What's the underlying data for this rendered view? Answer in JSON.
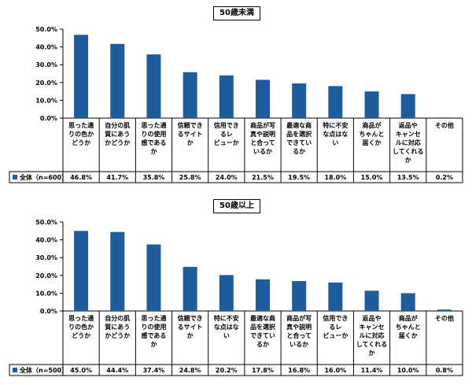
{
  "chart_data": [
    {
      "type": "bar",
      "title": "50歳未満",
      "y_ticks": [
        "0.0%",
        "10.0%",
        "20.0%",
        "30.0%",
        "40.0%",
        "50.0%"
      ],
      "ylim": [
        0,
        50
      ],
      "grid": false,
      "color": "#1f5c9e",
      "categories": [
        [
          "思った通",
          "りの色か",
          "どうか"
        ],
        [
          "自分の肌",
          "質にあう",
          "かどうか"
        ],
        [
          "思った通",
          "りの使用",
          "感である",
          "か"
        ],
        [
          "信頼でき",
          "るサイト",
          "か"
        ],
        [
          "信用でき",
          "るレ",
          "ビューか"
        ],
        [
          "商品が写",
          "真や説明",
          "と合って",
          "いるか"
        ],
        [
          "最適な商",
          "品を選択",
          "できてい",
          "るか"
        ],
        [
          "特に不安",
          "な点はな",
          "い"
        ],
        [
          "商品が",
          "ちゃんと",
          "届くか"
        ],
        [
          "返品や",
          "キャンセ",
          "ルに対応",
          "してくれる",
          "か"
        ],
        [
          "その他"
        ]
      ],
      "series": [
        {
          "name": "全体（n=600）",
          "values": [
            46.8,
            41.7,
            35.8,
            25.8,
            24.0,
            21.5,
            19.5,
            18.0,
            15.0,
            13.5,
            0.2
          ],
          "labels": [
            "46.8%",
            "41.7%",
            "35.8%",
            "25.8%",
            "24.0%",
            "21.5%",
            "19.5%",
            "18.0%",
            "15.0%",
            "13.5%",
            "0.2%"
          ]
        }
      ]
    },
    {
      "type": "bar",
      "title": "50歳以上",
      "y_ticks": [
        "0.0%",
        "10.0%",
        "20.0%",
        "30.0%",
        "40.0%",
        "50.0%"
      ],
      "ylim": [
        0,
        50
      ],
      "grid": false,
      "color": "#1f5c9e",
      "categories": [
        [
          "思った通",
          "りの色か",
          "どうか"
        ],
        [
          "自分の肌",
          "質にあう",
          "かどうか"
        ],
        [
          "思った通",
          "りの使用",
          "感である",
          "か"
        ],
        [
          "信頼でき",
          "るサイト",
          "か"
        ],
        [
          "特に不安",
          "な点はな",
          "い"
        ],
        [
          "最適な商",
          "品を選択",
          "できてい",
          "るか"
        ],
        [
          "商品が写",
          "真や説明",
          "と合って",
          "いるか"
        ],
        [
          "信用でき",
          "るレ",
          "ビューか"
        ],
        [
          "返品や",
          "キャンセ",
          "ルに対応",
          "してくれる",
          "か"
        ],
        [
          "商品が",
          "ちゃんと",
          "届くか"
        ],
        [
          "その他"
        ]
      ],
      "series": [
        {
          "name": "全体（n=500）",
          "values": [
            45.0,
            44.4,
            37.4,
            24.8,
            20.2,
            17.8,
            16.8,
            16.0,
            11.4,
            10.0,
            0.8
          ],
          "labels": [
            "45.0%",
            "44.4%",
            "37.4%",
            "24.8%",
            "20.2%",
            "17.8%",
            "16.8%",
            "16.0%",
            "11.4%",
            "10.0%",
            "0.8%"
          ]
        }
      ]
    }
  ]
}
